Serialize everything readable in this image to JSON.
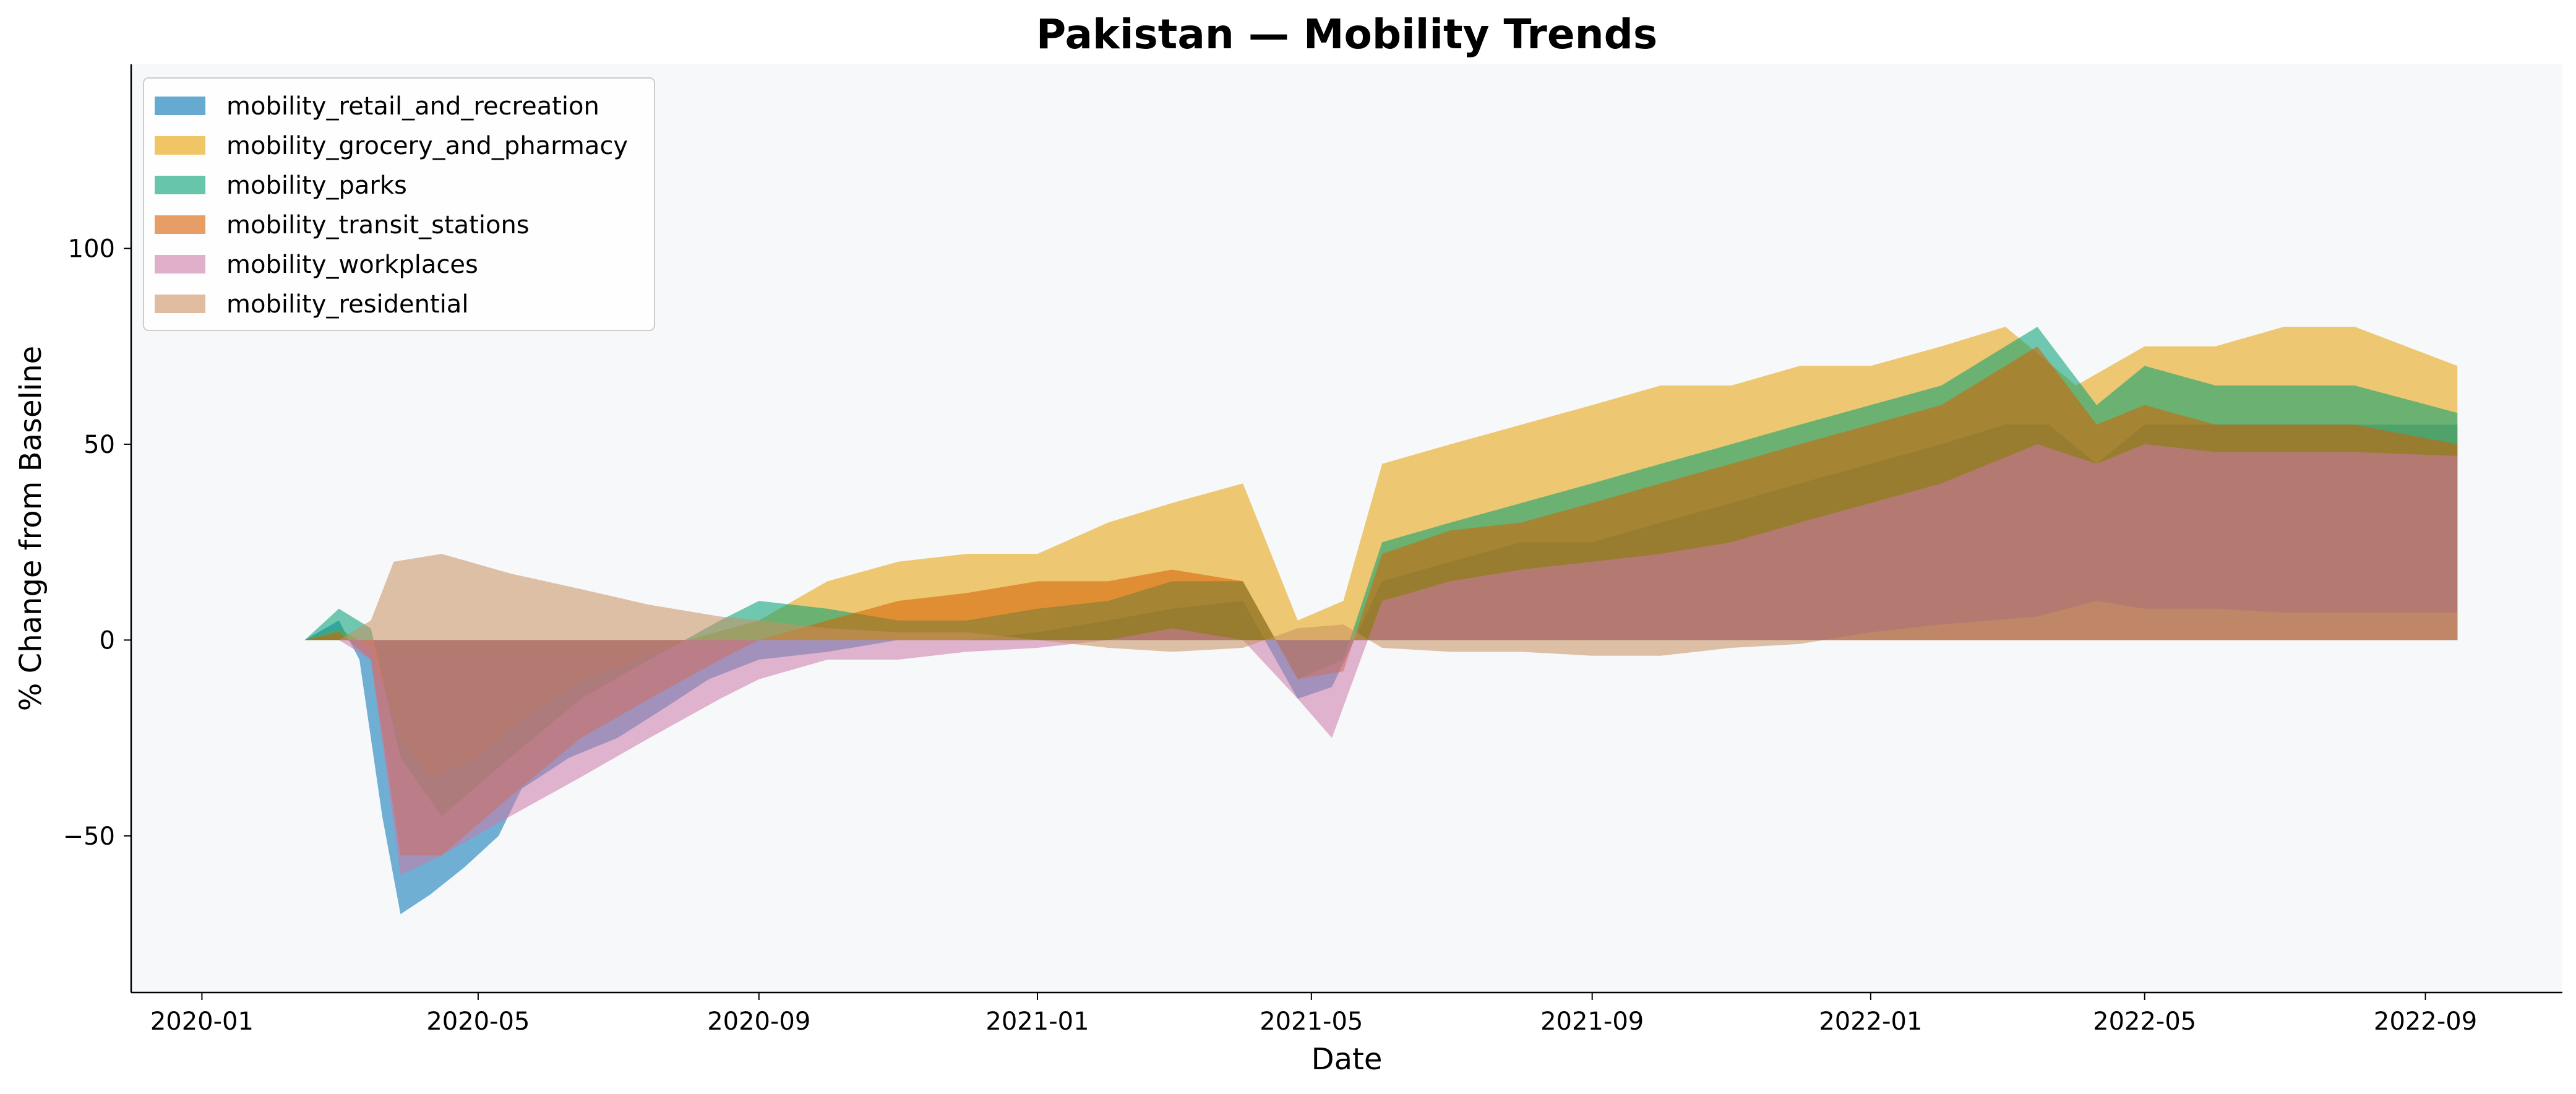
{
  "chart_data": {
    "type": "area",
    "title": "Pakistan — Mobility Trends",
    "xlabel": "Date",
    "ylabel": "% Change from Baseline",
    "x_range": [
      "2019-12-01",
      "2022-10-31"
    ],
    "ylim": [
      -90,
      147
    ],
    "x_ticks": [
      "2020-01",
      "2020-05",
      "2020-09",
      "2021-01",
      "2021-05",
      "2021-09",
      "2022-01",
      "2022-05",
      "2022-09"
    ],
    "y_ticks": [
      -50,
      0,
      50,
      100
    ],
    "y_tick_labels": [
      "−50",
      "0",
      "50",
      "100"
    ],
    "grid": false,
    "legend_position": "top-left",
    "stacked": false,
    "series": [
      {
        "name": "mobility_retail_and_recreation",
        "color": "#0072B2",
        "points": [
          [
            "2020-02-15",
            0
          ],
          [
            "2020-03-01",
            5
          ],
          [
            "2020-03-10",
            -5
          ],
          [
            "2020-03-20",
            -45
          ],
          [
            "2020-03-28",
            -70
          ],
          [
            "2020-04-10",
            -65
          ],
          [
            "2020-04-25",
            -58
          ],
          [
            "2020-05-10",
            -50
          ],
          [
            "2020-05-20",
            -38
          ],
          [
            "2020-06-10",
            -30
          ],
          [
            "2020-07-01",
            -25
          ],
          [
            "2020-07-20",
            -18
          ],
          [
            "2020-08-10",
            -10
          ],
          [
            "2020-09-01",
            -5
          ],
          [
            "2020-10-01",
            -3
          ],
          [
            "2020-11-01",
            0
          ],
          [
            "2020-12-01",
            0
          ],
          [
            "2021-01-01",
            2
          ],
          [
            "2021-02-01",
            5
          ],
          [
            "2021-03-01",
            8
          ],
          [
            "2021-04-01",
            10
          ],
          [
            "2021-04-25",
            -15
          ],
          [
            "2021-05-10",
            -12
          ],
          [
            "2021-06-01",
            15
          ],
          [
            "2021-07-01",
            20
          ],
          [
            "2021-08-01",
            25
          ],
          [
            "2021-09-01",
            25
          ],
          [
            "2021-10-01",
            30
          ],
          [
            "2021-11-01",
            35
          ],
          [
            "2021-12-01",
            40
          ],
          [
            "2022-01-01",
            45
          ],
          [
            "2022-02-01",
            50
          ],
          [
            "2022-03-01",
            55
          ],
          [
            "2022-03-20",
            55
          ],
          [
            "2022-04-10",
            45
          ],
          [
            "2022-05-01",
            55
          ],
          [
            "2022-06-01",
            55
          ],
          [
            "2022-07-01",
            55
          ],
          [
            "2022-08-01",
            55
          ],
          [
            "2022-09-15",
            55
          ]
        ]
      },
      {
        "name": "mobility_grocery_and_pharmacy",
        "color": "#E69F00",
        "points": [
          [
            "2020-02-15",
            0
          ],
          [
            "2020-03-01",
            3
          ],
          [
            "2020-03-15",
            -2
          ],
          [
            "2020-03-28",
            -25
          ],
          [
            "2020-04-10",
            -35
          ],
          [
            "2020-05-01",
            -30
          ],
          [
            "2020-05-20",
            -20
          ],
          [
            "2020-06-15",
            -10
          ],
          [
            "2020-07-10",
            -5
          ],
          [
            "2020-08-01",
            0
          ],
          [
            "2020-09-01",
            5
          ],
          [
            "2020-10-01",
            15
          ],
          [
            "2020-11-01",
            20
          ],
          [
            "2020-12-01",
            22
          ],
          [
            "2021-01-01",
            22
          ],
          [
            "2021-02-01",
            30
          ],
          [
            "2021-03-01",
            35
          ],
          [
            "2021-04-01",
            40
          ],
          [
            "2021-04-25",
            5
          ],
          [
            "2021-05-15",
            10
          ],
          [
            "2021-06-01",
            45
          ],
          [
            "2021-07-01",
            50
          ],
          [
            "2021-08-01",
            55
          ],
          [
            "2021-09-01",
            60
          ],
          [
            "2021-10-01",
            65
          ],
          [
            "2021-11-01",
            65
          ],
          [
            "2021-12-01",
            70
          ],
          [
            "2022-01-01",
            70
          ],
          [
            "2022-02-01",
            75
          ],
          [
            "2022-03-01",
            80
          ],
          [
            "2022-04-01",
            65
          ],
          [
            "2022-05-01",
            75
          ],
          [
            "2022-06-01",
            75
          ],
          [
            "2022-07-01",
            80
          ],
          [
            "2022-08-01",
            80
          ],
          [
            "2022-09-15",
            70
          ]
        ]
      },
      {
        "name": "mobility_parks",
        "color": "#009E73",
        "points": [
          [
            "2020-02-15",
            0
          ],
          [
            "2020-03-01",
            8
          ],
          [
            "2020-03-15",
            3
          ],
          [
            "2020-03-28",
            -30
          ],
          [
            "2020-04-15",
            -45
          ],
          [
            "2020-05-15",
            -30
          ],
          [
            "2020-06-15",
            -15
          ],
          [
            "2020-07-15",
            -5
          ],
          [
            "2020-08-15",
            5
          ],
          [
            "2020-09-01",
            10
          ],
          [
            "2020-10-01",
            8
          ],
          [
            "2020-11-01",
            5
          ],
          [
            "2020-12-01",
            5
          ],
          [
            "2021-01-01",
            8
          ],
          [
            "2021-02-01",
            10
          ],
          [
            "2021-03-01",
            15
          ],
          [
            "2021-04-01",
            15
          ],
          [
            "2021-04-25",
            -10
          ],
          [
            "2021-05-15",
            -5
          ],
          [
            "2021-06-01",
            25
          ],
          [
            "2021-07-01",
            30
          ],
          [
            "2021-08-01",
            35
          ],
          [
            "2021-09-01",
            40
          ],
          [
            "2021-10-01",
            45
          ],
          [
            "2021-11-01",
            50
          ],
          [
            "2021-12-01",
            55
          ],
          [
            "2022-01-01",
            60
          ],
          [
            "2022-02-01",
            65
          ],
          [
            "2022-03-15",
            80
          ],
          [
            "2022-04-10",
            60
          ],
          [
            "2022-05-01",
            70
          ],
          [
            "2022-06-01",
            65
          ],
          [
            "2022-07-01",
            65
          ],
          [
            "2022-08-01",
            65
          ],
          [
            "2022-09-15",
            58
          ]
        ]
      },
      {
        "name": "mobility_transit_stations",
        "color": "#D55E00",
        "points": [
          [
            "2020-02-15",
            0
          ],
          [
            "2020-03-01",
            2
          ],
          [
            "2020-03-15",
            -5
          ],
          [
            "2020-03-28",
            -55
          ],
          [
            "2020-04-15",
            -55
          ],
          [
            "2020-05-15",
            -40
          ],
          [
            "2020-06-15",
            -25
          ],
          [
            "2020-07-15",
            -15
          ],
          [
            "2020-08-15",
            -5
          ],
          [
            "2020-09-01",
            0
          ],
          [
            "2020-10-01",
            5
          ],
          [
            "2020-11-01",
            10
          ],
          [
            "2020-12-01",
            12
          ],
          [
            "2021-01-01",
            15
          ],
          [
            "2021-02-01",
            15
          ],
          [
            "2021-03-01",
            18
          ],
          [
            "2021-04-01",
            15
          ],
          [
            "2021-04-25",
            -10
          ],
          [
            "2021-05-15",
            -8
          ],
          [
            "2021-06-01",
            22
          ],
          [
            "2021-07-01",
            28
          ],
          [
            "2021-08-01",
            30
          ],
          [
            "2021-09-01",
            35
          ],
          [
            "2021-10-01",
            40
          ],
          [
            "2021-11-01",
            45
          ],
          [
            "2021-12-01",
            50
          ],
          [
            "2022-01-01",
            55
          ],
          [
            "2022-02-01",
            60
          ],
          [
            "2022-03-15",
            75
          ],
          [
            "2022-04-10",
            55
          ],
          [
            "2022-05-01",
            60
          ],
          [
            "2022-06-01",
            55
          ],
          [
            "2022-07-01",
            55
          ],
          [
            "2022-08-01",
            55
          ],
          [
            "2022-09-15",
            50
          ]
        ]
      },
      {
        "name": "mobility_workplaces",
        "color": "#CC79A7",
        "points": [
          [
            "2020-02-15",
            0
          ],
          [
            "2020-03-01",
            0
          ],
          [
            "2020-03-15",
            -5
          ],
          [
            "2020-03-28",
            -60
          ],
          [
            "2020-04-15",
            -55
          ],
          [
            "2020-05-15",
            -45
          ],
          [
            "2020-06-15",
            -35
          ],
          [
            "2020-07-15",
            -25
          ],
          [
            "2020-08-15",
            -15
          ],
          [
            "2020-09-01",
            -10
          ],
          [
            "2020-10-01",
            -5
          ],
          [
            "2020-11-01",
            -5
          ],
          [
            "2020-12-01",
            -3
          ],
          [
            "2021-01-01",
            -2
          ],
          [
            "2021-02-01",
            0
          ],
          [
            "2021-03-01",
            3
          ],
          [
            "2021-04-01",
            0
          ],
          [
            "2021-04-25",
            -15
          ],
          [
            "2021-05-10",
            -25
          ],
          [
            "2021-06-01",
            10
          ],
          [
            "2021-07-01",
            15
          ],
          [
            "2021-08-01",
            18
          ],
          [
            "2021-09-01",
            20
          ],
          [
            "2021-10-01",
            22
          ],
          [
            "2021-11-01",
            25
          ],
          [
            "2021-12-01",
            30
          ],
          [
            "2022-01-01",
            35
          ],
          [
            "2022-02-01",
            40
          ],
          [
            "2022-03-15",
            50
          ],
          [
            "2022-04-10",
            45
          ],
          [
            "2022-05-01",
            50
          ],
          [
            "2022-06-01",
            48
          ],
          [
            "2022-07-01",
            48
          ],
          [
            "2022-08-01",
            48
          ],
          [
            "2022-09-15",
            47
          ]
        ]
      },
      {
        "name": "mobility_residential",
        "color": "#C98F5F",
        "points": [
          [
            "2020-02-15",
            0
          ],
          [
            "2020-03-01",
            0
          ],
          [
            "2020-03-15",
            5
          ],
          [
            "2020-03-25",
            20
          ],
          [
            "2020-04-15",
            22
          ],
          [
            "2020-05-15",
            17
          ],
          [
            "2020-06-15",
            13
          ],
          [
            "2020-07-15",
            9
          ],
          [
            "2020-08-15",
            6
          ],
          [
            "2020-09-01",
            5
          ],
          [
            "2020-10-01",
            3
          ],
          [
            "2020-11-01",
            2
          ],
          [
            "2020-12-01",
            2
          ],
          [
            "2021-01-01",
            0
          ],
          [
            "2021-02-01",
            -2
          ],
          [
            "2021-03-01",
            -3
          ],
          [
            "2021-04-01",
            -2
          ],
          [
            "2021-04-25",
            3
          ],
          [
            "2021-05-15",
            4
          ],
          [
            "2021-06-01",
            -2
          ],
          [
            "2021-07-01",
            -3
          ],
          [
            "2021-08-01",
            -3
          ],
          [
            "2021-09-01",
            -4
          ],
          [
            "2021-10-01",
            -4
          ],
          [
            "2021-11-01",
            -2
          ],
          [
            "2021-12-01",
            -1
          ],
          [
            "2022-01-01",
            2
          ],
          [
            "2022-02-01",
            4
          ],
          [
            "2022-03-15",
            6
          ],
          [
            "2022-04-10",
            10
          ],
          [
            "2022-05-01",
            8
          ],
          [
            "2022-06-01",
            8
          ],
          [
            "2022-07-01",
            7
          ],
          [
            "2022-08-01",
            7
          ],
          [
            "2022-09-15",
            7
          ]
        ]
      }
    ]
  }
}
